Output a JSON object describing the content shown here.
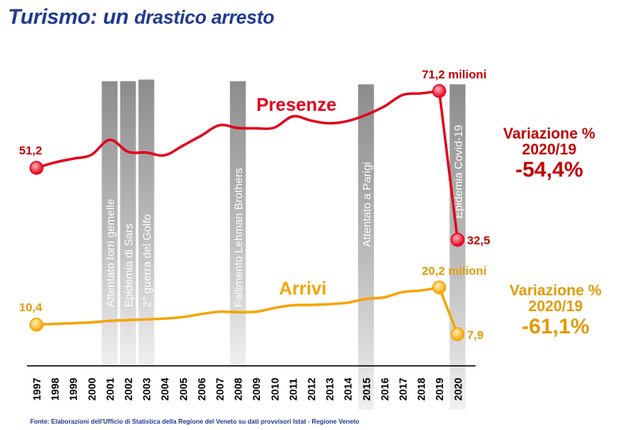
{
  "title": {
    "part1": "Turismo: un",
    "part2": "drastico arresto"
  },
  "source": "Fonte: Elaborazioni dell'Ufficio di Statistica della Regione del Veneto su dati provvisori Istat - Regione Veneto",
  "variations": {
    "presenze": {
      "label_1": "Variazione %",
      "label_2": "2020/19",
      "value": "-54,4%"
    },
    "arrivi": {
      "label_1": "Variazione %",
      "label_2": "2020/19",
      "value": "-61,1%"
    }
  },
  "colors": {
    "presenze": "#e3001b",
    "arrivi": "#f5a300",
    "band": "#a6a6a6",
    "title": "#1f3a8f"
  },
  "chart_data": {
    "type": "line",
    "x": [
      "1997",
      "1998",
      "1999",
      "2000",
      "2001",
      "2002",
      "2003",
      "2004",
      "2005",
      "2006",
      "2007",
      "2008",
      "2009",
      "2010",
      "2011",
      "2012",
      "2013",
      "2014",
      "2015",
      "2016",
      "2017",
      "2018",
      "2019",
      "2020"
    ],
    "series": [
      {
        "name": "Presenze",
        "key": "presenze",
        "values": [
          51.2,
          52.6,
          53.6,
          54.6,
          58.5,
          55.4,
          55.2,
          54.5,
          57.0,
          59.6,
          62.3,
          61.6,
          61.5,
          61.7,
          64.6,
          63.5,
          62.8,
          63.4,
          65.0,
          67.2,
          70.2,
          70.6,
          71.2,
          32.5
        ],
        "start_label": "51,2",
        "peak_label": "71,2 milioni",
        "end_label": "32,5"
      },
      {
        "name": "Arrivi",
        "key": "arrivi",
        "values": [
          10.4,
          10.6,
          10.8,
          11.0,
          11.4,
          11.6,
          11.8,
          12.0,
          12.4,
          13.2,
          13.8,
          13.7,
          13.8,
          14.8,
          15.5,
          15.6,
          15.8,
          16.2,
          17.2,
          17.6,
          19.0,
          19.4,
          20.2,
          7.9
        ],
        "start_label": "10,4",
        "peak_label": "20,2 milioni",
        "end_label": "7,9"
      }
    ],
    "events": [
      {
        "year": "2001",
        "label": "Attentato torri gemelle"
      },
      {
        "year": "2002",
        "label": "Epidemia di Sars"
      },
      {
        "year": "2003",
        "label": "2° guerra del Golfo"
      },
      {
        "year": "2008",
        "label": "Fallimento Lehman Brothers"
      },
      {
        "year": "2015",
        "label": "Attentato a Parigi"
      },
      {
        "year": "2020",
        "label": "Epidemia Covid-19"
      }
    ]
  }
}
